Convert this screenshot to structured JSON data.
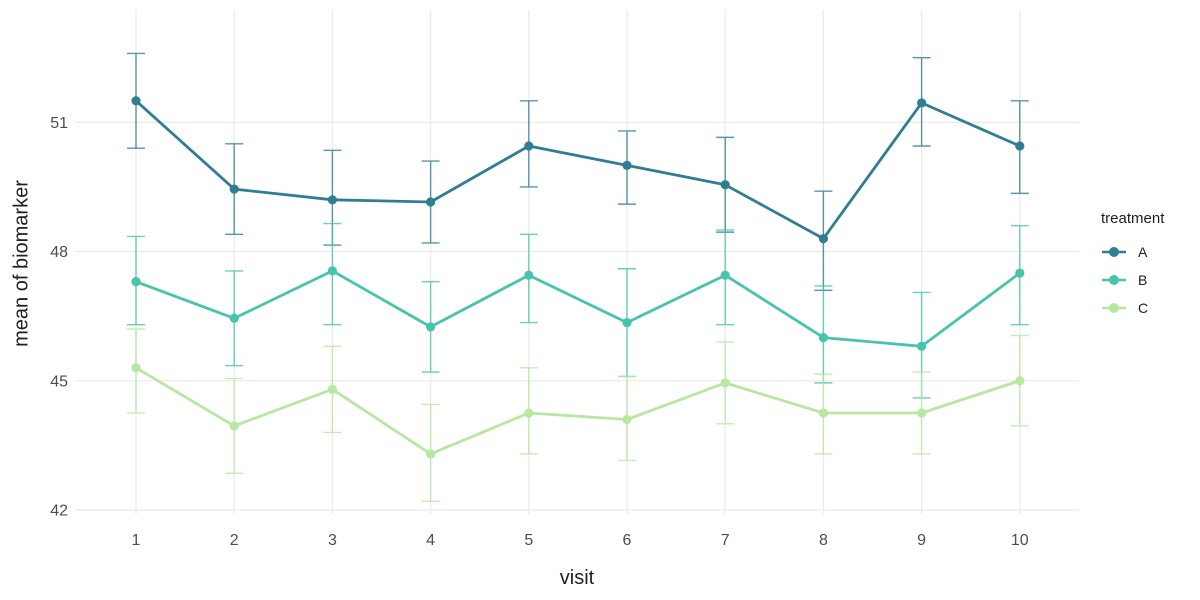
{
  "chart_data": {
    "type": "line",
    "title": "",
    "xlabel": "visit",
    "ylabel": "mean of biomarker",
    "x": [
      1,
      2,
      3,
      4,
      5,
      6,
      7,
      8,
      9,
      10
    ],
    "x_tick_labels": [
      "1",
      "2",
      "3",
      "4",
      "5",
      "6",
      "7",
      "8",
      "9",
      "10"
    ],
    "y_ticks": [
      42,
      45,
      48,
      51
    ],
    "ylim": [
      41.5,
      53.6
    ],
    "grid": "major-only",
    "error_bars": true,
    "legend": {
      "title": "treatment",
      "position": "right"
    },
    "series": [
      {
        "name": "A",
        "color": "#2f7e91",
        "values": [
          51.5,
          49.45,
          49.2,
          49.15,
          50.45,
          50.0,
          49.55,
          48.3,
          51.45,
          50.45
        ],
        "lower": [
          50.4,
          48.4,
          48.15,
          48.2,
          49.5,
          49.1,
          48.45,
          47.1,
          50.45,
          49.35
        ],
        "upper": [
          52.6,
          50.5,
          50.35,
          50.1,
          51.5,
          50.8,
          50.65,
          49.4,
          52.5,
          51.5
        ]
      },
      {
        "name": "B",
        "color": "#48c3ac",
        "values": [
          47.3,
          46.45,
          47.55,
          46.25,
          47.45,
          46.35,
          47.45,
          46.0,
          45.8,
          47.5
        ],
        "lower": [
          46.3,
          45.35,
          46.3,
          45.2,
          46.35,
          45.1,
          46.3,
          44.95,
          44.6,
          46.3
        ],
        "upper": [
          48.35,
          47.55,
          48.65,
          47.3,
          48.4,
          47.6,
          48.5,
          47.2,
          47.05,
          48.6
        ]
      },
      {
        "name": "C",
        "color": "#b8e7a2",
        "values": [
          45.3,
          43.95,
          44.8,
          43.3,
          44.25,
          44.1,
          44.95,
          44.25,
          44.25,
          45.0
        ],
        "lower": [
          44.25,
          42.85,
          43.8,
          42.2,
          43.3,
          43.15,
          44.0,
          43.3,
          43.3,
          43.95
        ],
        "upper": [
          46.2,
          45.05,
          45.8,
          44.45,
          45.3,
          45.1,
          45.9,
          45.15,
          45.2,
          46.05
        ]
      }
    ],
    "style": {
      "grid_color": "#ebebeb",
      "tick_label_color": "#4d4d4d",
      "axis_title_color": "#1f1f1f",
      "background": "#ffffff"
    }
  }
}
